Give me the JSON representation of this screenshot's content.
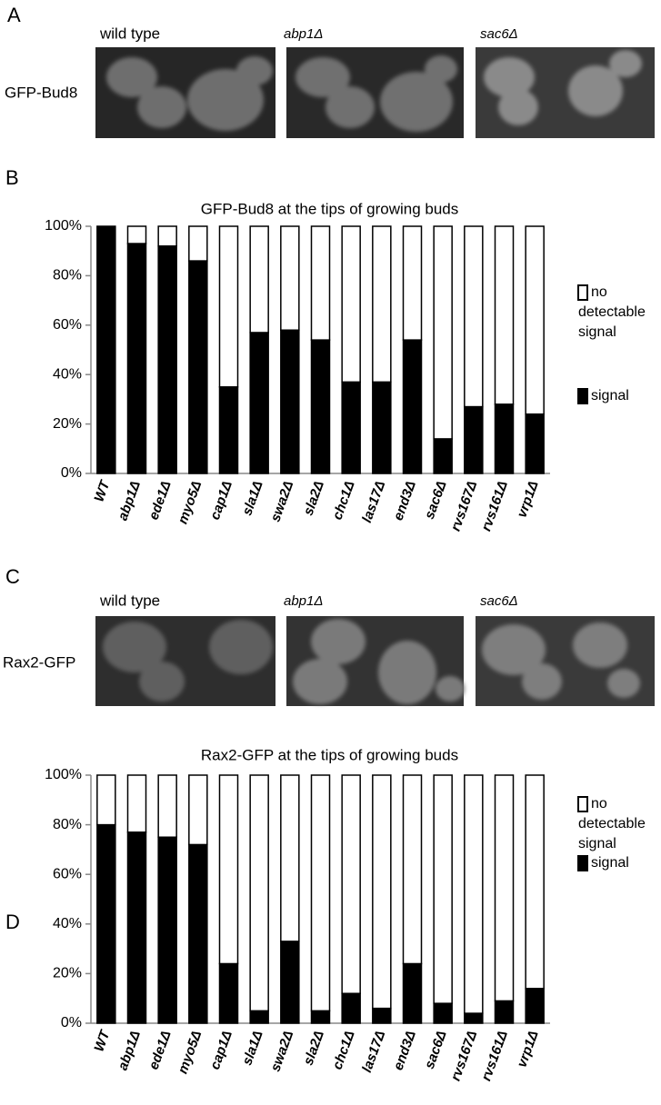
{
  "figure": {
    "panel_labels": [
      "A",
      "B",
      "C",
      "D"
    ],
    "micrographs": [
      {
        "row_label": "GFP-Bud8",
        "captions": [
          "wild type",
          "abp1Δ",
          "sac6Δ"
        ]
      },
      {
        "row_label": "Rax2-GFP",
        "captions": [
          "wild type",
          "abp1Δ",
          "sac6Δ"
        ]
      }
    ]
  },
  "chart_data": [
    {
      "type": "stacked_bar",
      "title": "GFP-Bud8 at the tips of growing buds",
      "categories": [
        "WT",
        "abp1Δ",
        "ede1Δ",
        "myo5Δ",
        "cap1Δ",
        "sla1Δ",
        "swa2Δ",
        "sla2Δ",
        "chc1Δ",
        "las17Δ",
        "end3Δ",
        "sac6Δ",
        "rvs167Δ",
        "rvs161Δ",
        "vrp1Δ"
      ],
      "series": [
        {
          "name": "signal",
          "color": "#000000",
          "values": [
            100,
            93,
            92,
            86,
            35,
            57,
            58,
            54,
            37,
            37,
            54,
            14,
            27,
            28,
            24
          ]
        },
        {
          "name": "no detectable signal",
          "color": "#ffffff",
          "values": [
            0,
            7,
            8,
            14,
            65,
            43,
            42,
            46,
            63,
            63,
            46,
            86,
            73,
            72,
            76
          ]
        }
      ],
      "ylim": [
        0,
        100
      ],
      "yticks": [
        {
          "value": 0,
          "label": "0%"
        },
        {
          "value": 20,
          "label": "20%"
        },
        {
          "value": 40,
          "label": "40%"
        },
        {
          "value": 60,
          "label": "60%"
        },
        {
          "value": 80,
          "label": "80%"
        },
        {
          "value": 100,
          "label": "100%"
        }
      ],
      "legend": "right"
    },
    {
      "type": "stacked_bar",
      "title": "Rax2-GFP at the tips of growing buds",
      "categories": [
        "WT",
        "abp1Δ",
        "ede1Δ",
        "myo5Δ",
        "cap1Δ",
        "sla1Δ",
        "swa2Δ",
        "sla2Δ",
        "chc1Δ",
        "las17Δ",
        "end3Δ",
        "sac6Δ",
        "rvs167Δ",
        "rvs161Δ",
        "vrp1Δ"
      ],
      "series": [
        {
          "name": "signal",
          "color": "#000000",
          "values": [
            80,
            77,
            75,
            72,
            24,
            5,
            33,
            5,
            12,
            6,
            24,
            8,
            4,
            9,
            14
          ]
        },
        {
          "name": "no detectable signal",
          "color": "#ffffff",
          "values": [
            20,
            23,
            25,
            28,
            76,
            95,
            67,
            95,
            88,
            94,
            76,
            92,
            96,
            91,
            86
          ]
        }
      ],
      "ylim": [
        0,
        100
      ],
      "yticks": [
        {
          "value": 0,
          "label": "0%"
        },
        {
          "value": 20,
          "label": "20%"
        },
        {
          "value": 40,
          "label": "40%"
        },
        {
          "value": 60,
          "label": "60%"
        },
        {
          "value": 80,
          "label": "80%"
        },
        {
          "value": 100,
          "label": "100%"
        }
      ],
      "legend": "right"
    }
  ]
}
